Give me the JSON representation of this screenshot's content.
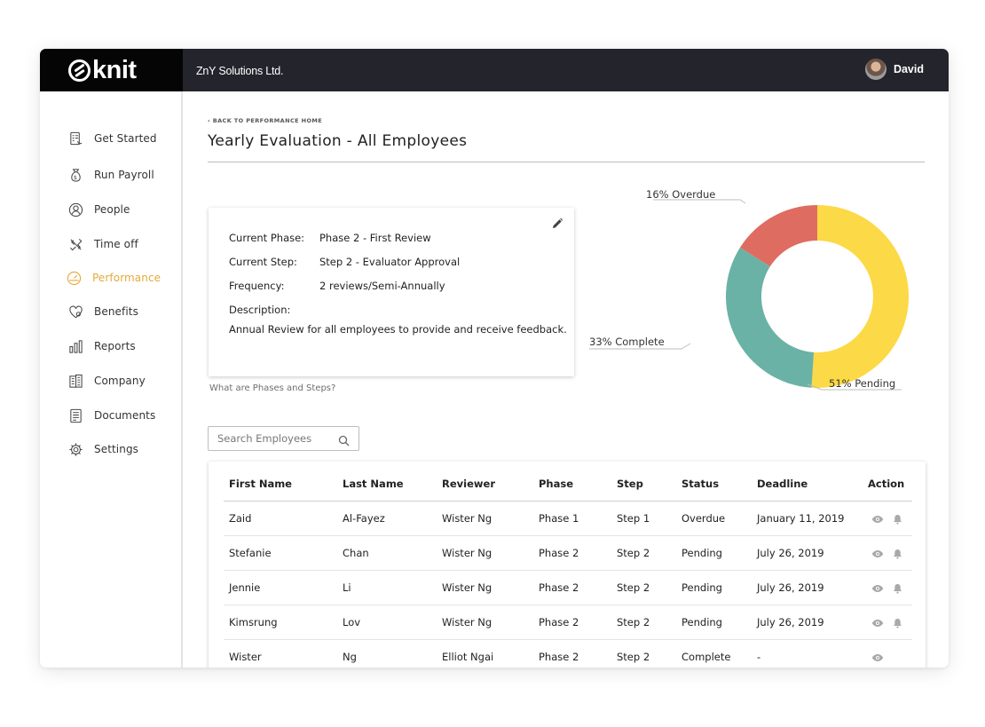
{
  "topbar": {
    "logo_text": "knit",
    "company_name": "ZnY Solutions Ltd.",
    "user_name": "David"
  },
  "sidebar": {
    "items": [
      {
        "label": "Get Started",
        "icon": "checklist-icon"
      },
      {
        "label": "Run Payroll",
        "icon": "money-bag-icon"
      },
      {
        "label": "People",
        "icon": "person-icon"
      },
      {
        "label": "Time off",
        "icon": "airplane-icon"
      },
      {
        "label": "Performance",
        "icon": "gauge-icon",
        "active": true
      },
      {
        "label": "Benefits",
        "icon": "heart-icon"
      },
      {
        "label": "Reports",
        "icon": "bar-chart-icon"
      },
      {
        "label": "Company",
        "icon": "building-icon"
      },
      {
        "label": "Documents",
        "icon": "document-icon"
      },
      {
        "label": "Settings",
        "icon": "gear-icon"
      }
    ],
    "active_color": "#e6a93b"
  },
  "main": {
    "back_link": "‹ BACK TO PERFORMANCE HOME",
    "title": "Yearly Evaluation - All Employees",
    "info": {
      "current_phase_label": "Current Phase:",
      "current_phase_value": "Phase 2 - First Review",
      "current_step_label": "Current Step:",
      "current_step_value": "Step 2 - Evaluator Approval",
      "frequency_label": "Frequency:",
      "frequency_value": "2 reviews/Semi-Annually",
      "description_label": "Description:",
      "description_value": "Annual Review for all employees to provide and receive feedback."
    },
    "help_link": "What are Phases and Steps?",
    "search": {
      "placeholder": "Search Employees"
    }
  },
  "chart_data": {
    "type": "pie",
    "slices": [
      {
        "label": "51% Pending",
        "value": 51,
        "color": "#fcd946"
      },
      {
        "label": "33% Complete",
        "value": 33,
        "color": "#6ab2a5"
      },
      {
        "label": "16% Overdue",
        "value": 16,
        "color": "#df6c61"
      }
    ]
  },
  "table": {
    "headers": [
      "First Name",
      "Last Name",
      "Reviewer",
      "Phase",
      "Step",
      "Status",
      "Deadline",
      "Action"
    ],
    "rows": [
      {
        "first": "Zaid",
        "last": "Al-Fayez",
        "reviewer": "Wister Ng",
        "phase": "Phase 1",
        "step": "Step 1",
        "status": "Overdue",
        "deadline": "January 11, 2019",
        "actions": [
          "view-icon",
          "bell-icon"
        ]
      },
      {
        "first": "Stefanie",
        "last": "Chan",
        "reviewer": "Wister Ng",
        "phase": "Phase 2",
        "step": "Step 2",
        "status": "Pending",
        "deadline": "July 26, 2019",
        "actions": [
          "view-icon",
          "bell-icon"
        ]
      },
      {
        "first": "Jennie",
        "last": "Li",
        "reviewer": "Wister Ng",
        "phase": "Phase 2",
        "step": "Step 2",
        "status": "Pending",
        "deadline": "July 26, 2019",
        "actions": [
          "view-icon",
          "bell-icon"
        ]
      },
      {
        "first": "Kimsrung",
        "last": "Lov",
        "reviewer": "Wister Ng",
        "phase": "Phase 2",
        "step": "Step 2",
        "status": "Pending",
        "deadline": "July 26, 2019",
        "actions": [
          "view-icon",
          "bell-icon"
        ]
      },
      {
        "first": "Wister",
        "last": "Ng",
        "reviewer": "Elliot Ngai",
        "phase": "Phase 2",
        "step": "Step 2",
        "status": "Complete",
        "deadline": "-",
        "actions": [
          "view-icon"
        ]
      }
    ]
  }
}
